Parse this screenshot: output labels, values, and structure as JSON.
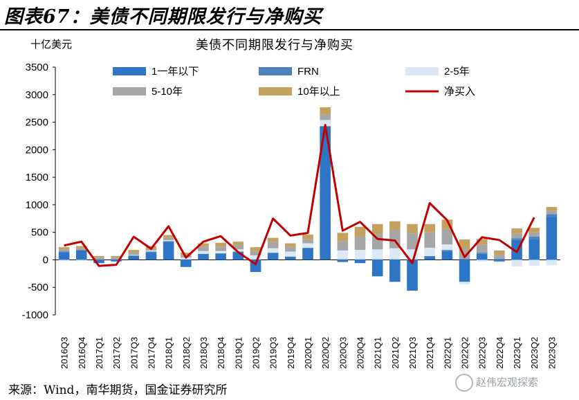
{
  "figure_title": "图表67：美债不同期限发行与净购买",
  "source_note": "来源：Wind，南华期货，国金证券研究所",
  "watermark_text": "赵伟宏观探索",
  "colors": {
    "y1": "#2e75c6",
    "frn": "#4f81bd",
    "y2_5": "#dce9f5",
    "y5_10": "#a6a6a6",
    "y10p": "#c4a061",
    "net": "#c00000"
  },
  "chart_data": {
    "type": "bar",
    "title": "美债不同期限发行与净购买",
    "ylabel": "十亿美元",
    "xlabel": "",
    "ylim": [
      -1000,
      3500
    ],
    "yticks": [
      -1000,
      -500,
      0,
      500,
      1000,
      1500,
      2000,
      2500,
      3000,
      3500
    ],
    "grid": false,
    "legend_position": "top",
    "categories": [
      "2016Q3",
      "2016Q4",
      "2017Q1",
      "2017Q2",
      "2017Q3",
      "2017Q4",
      "2018Q1",
      "2018Q2",
      "2018Q3",
      "2018Q4",
      "2019Q1",
      "2019Q2",
      "2019Q3",
      "2019Q4",
      "2020Q1",
      "2020Q2",
      "2020Q3",
      "2020Q4",
      "2021Q1",
      "2021Q2",
      "2021Q3",
      "2021Q4",
      "2022Q1",
      "2022Q2",
      "2022Q3",
      "2022Q4",
      "2023Q1",
      "2023Q2",
      "2023Q3"
    ],
    "series": [
      {
        "name": "1一年以下",
        "kind": "bar",
        "color_key": "y1",
        "values": [
          140,
          170,
          -60,
          -30,
          70,
          140,
          330,
          -130,
          100,
          110,
          140,
          -220,
          120,
          50,
          210,
          2420,
          -40,
          -60,
          -300,
          -400,
          -560,
          50,
          160,
          -400,
          110,
          -30,
          360,
          380,
          780
        ]
      },
      {
        "name": "FRN",
        "kind": "bar",
        "color_key": "frn",
        "values": [
          10,
          10,
          10,
          10,
          10,
          10,
          10,
          10,
          10,
          10,
          10,
          10,
          10,
          10,
          10,
          10,
          10,
          10,
          10,
          10,
          10,
          20,
          20,
          20,
          20,
          20,
          30,
          40,
          50
        ]
      },
      {
        "name": "2-5年",
        "kind": "bar",
        "color_key": "y2_5",
        "values": [
          -20,
          -20,
          -20,
          -20,
          10,
          20,
          20,
          30,
          50,
          40,
          40,
          70,
          80,
          90,
          80,
          110,
          160,
          170,
          180,
          200,
          180,
          150,
          100,
          -40,
          -30,
          -20,
          -120,
          -110,
          -100
        ]
      },
      {
        "name": "5-10年",
        "kind": "bar",
        "color_key": "y5_10",
        "values": [
          40,
          30,
          30,
          30,
          40,
          30,
          40,
          40,
          80,
          80,
          80,
          80,
          120,
          90,
          80,
          100,
          170,
          240,
          280,
          330,
          290,
          280,
          280,
          180,
          150,
          70,
          90,
          80,
          60
        ]
      },
      {
        "name": "10年以上",
        "kind": "bar",
        "color_key": "y10p",
        "values": [
          40,
          40,
          30,
          30,
          50,
          50,
          50,
          50,
          60,
          70,
          60,
          70,
          70,
          60,
          80,
          130,
          150,
          180,
          180,
          160,
          170,
          150,
          170,
          170,
          100,
          80,
          90,
          80,
          70
        ]
      },
      {
        "name": "净买入",
        "kind": "line",
        "color_key": "net",
        "values": [
          260,
          330,
          -110,
          -90,
          420,
          200,
          610,
          40,
          330,
          430,
          140,
          -80,
          750,
          440,
          490,
          2450,
          530,
          690,
          380,
          350,
          -60,
          1030,
          720,
          50,
          410,
          360,
          140,
          770,
          null
        ]
      }
    ]
  }
}
